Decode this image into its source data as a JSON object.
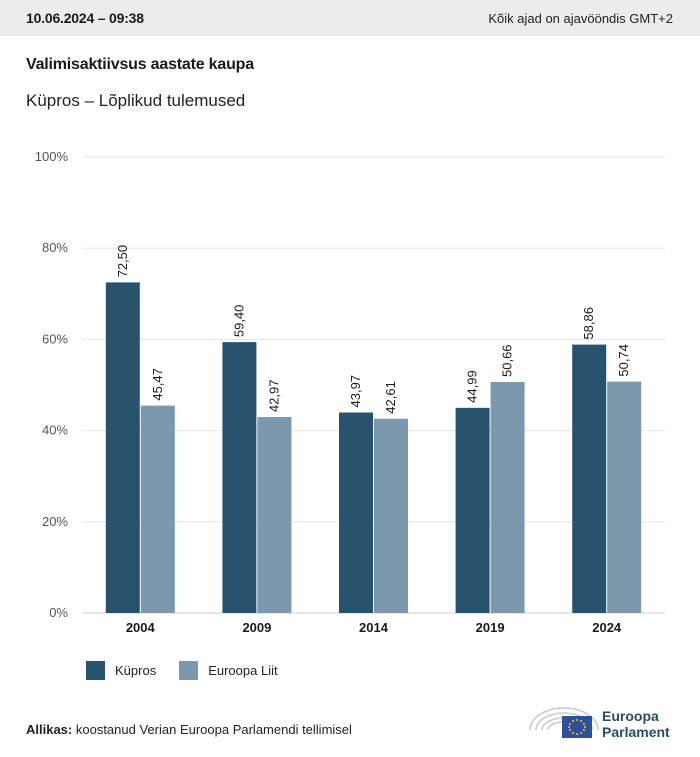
{
  "header": {
    "datetime": "10.06.2024 – 09:38",
    "timezone_note": "Kõik ajad on ajavööndis GMT+2"
  },
  "title": "Valimisaktiivsus aastate kaupa",
  "subtitle": "Küpros – Lõplikud tulemused",
  "legend": [
    {
      "label": "Küpros",
      "color": "#27536f"
    },
    {
      "label": "Euroopa Liit",
      "color": "#7b98ac"
    }
  ],
  "source": {
    "key": "Allikas:",
    "text": " koostanud Verian Euroopa Parlamendi tellimisel"
  },
  "logo": {
    "line1": "Euroopa",
    "line2": "Parlament"
  },
  "chart_data": {
    "type": "bar",
    "categories": [
      "2004",
      "2009",
      "2014",
      "2019",
      "2024"
    ],
    "series": [
      {
        "name": "Küpros",
        "color": "#27536f",
        "values": [
          72.5,
          59.4,
          43.97,
          44.99,
          58.86
        ],
        "labels": [
          "72,50",
          "59,40",
          "43,97",
          "44,99",
          "58,86"
        ]
      },
      {
        "name": "Euroopa Liit",
        "color": "#7b98ac",
        "values": [
          45.47,
          42.97,
          42.61,
          50.66,
          50.74
        ],
        "labels": [
          "45,47",
          "42,97",
          "42,61",
          "50,66",
          "50,74"
        ]
      }
    ],
    "yticks": [
      "0%",
      "20%",
      "40%",
      "60%",
      "80%",
      "100%"
    ],
    "ylim": [
      0,
      100
    ],
    "grid": true,
    "legend_position": "bottom-left"
  }
}
